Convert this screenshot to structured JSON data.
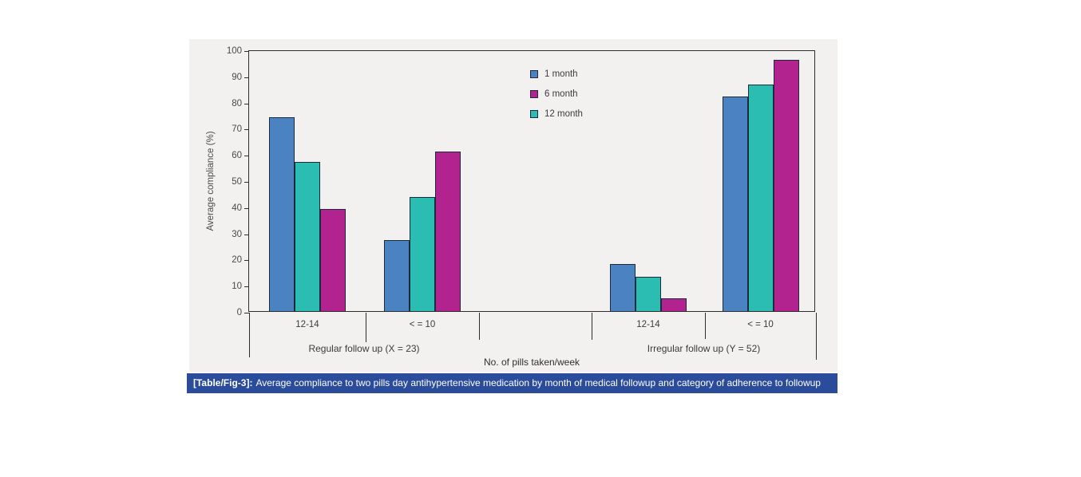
{
  "figure": {
    "panel_bg": "#f2f1f0",
    "axis_color": "#2e2e2e",
    "bar_border_color": "#1b2b3c",
    "text_color": "#3b3b3b"
  },
  "chart_data": {
    "type": "bar",
    "title": "",
    "ylabel": "Average compliance (%)",
    "xlabel": "No. of pills taken/week",
    "ylim": [
      0,
      100
    ],
    "ytick_step": 10,
    "yticks": [
      0,
      10,
      20,
      30,
      40,
      50,
      60,
      70,
      80,
      90,
      100
    ],
    "grid": false,
    "groups": [
      {
        "label": "Regular follow up (X = 23)",
        "categories": [
          "12-14",
          "< = 10"
        ]
      },
      {
        "label": "Irregular follow up (Y = 52)",
        "categories": [
          "12-14",
          "< = 10"
        ]
      }
    ],
    "series": [
      {
        "name": "1 month",
        "color": "#4a82c2",
        "values": [
          74,
          27,
          18,
          82
        ]
      },
      {
        "name": "6 month",
        "color": "#b22390",
        "values": [
          39,
          61,
          5,
          96
        ]
      },
      {
        "name": "12 month",
        "color": "#2bbcb2",
        "values": [
          57,
          43.5,
          13,
          86.5
        ]
      }
    ],
    "bar_display_order": [
      "1 month",
      "12 month",
      "6 month"
    ],
    "legend": [
      {
        "label": "1 month",
        "color": "#4a82c2"
      },
      {
        "label": "6 month",
        "color": "#b22390"
      },
      {
        "label": "12 month",
        "color": "#2bbcb2"
      }
    ],
    "legend_position": "inside-top-center"
  },
  "caption": {
    "tag": "[Table/Fig-3]:",
    "text": "Average compliance to two pills day antihypertensive medication by month of medical followup and category of adherence to followup",
    "bg_color": "#2b4c9b",
    "text_color": "#ffffff"
  }
}
